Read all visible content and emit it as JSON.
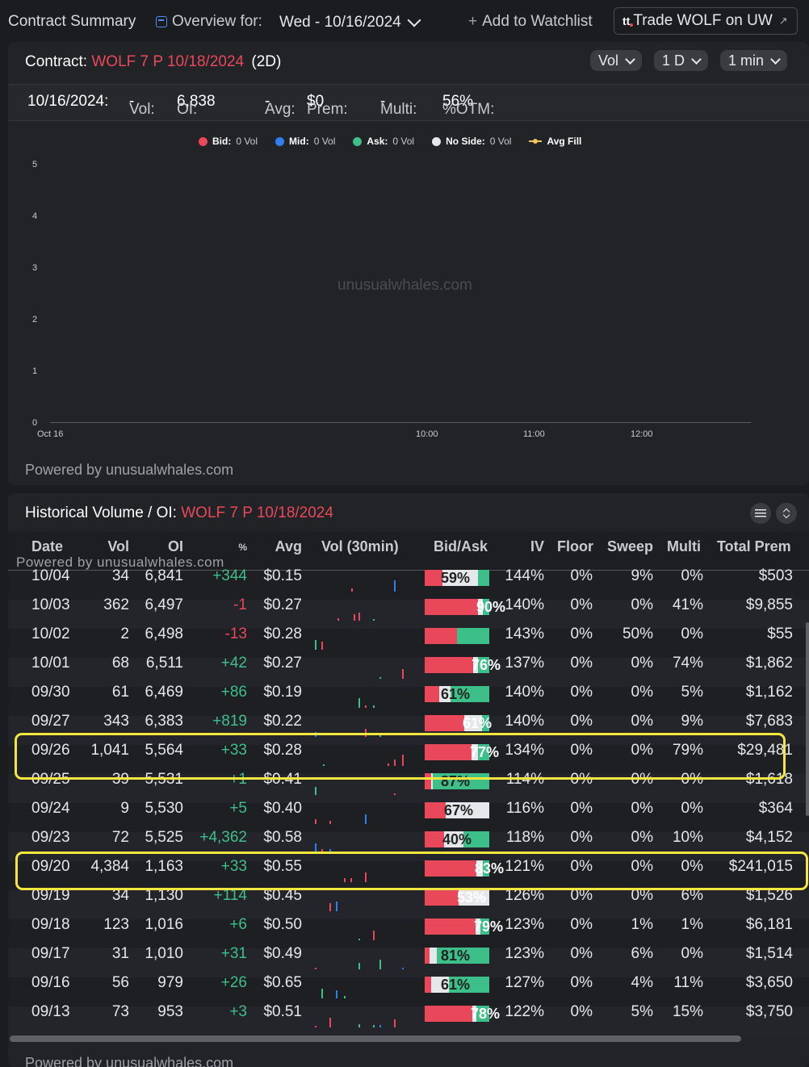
{
  "topbar": {
    "title": "Contract Summary",
    "overview_label": "Overview for:",
    "date_value": "Wed - 10/16/2024",
    "watchlist": "Add to Watchlist",
    "trade_logo": "tt",
    "trade_label": "Trade WOLF on UW",
    "trade_ext": "↗"
  },
  "contract": {
    "label": "Contract:",
    "symbol": "WOLF 7 P 10/18/2024",
    "dte": "(2D)",
    "pills": [
      "Vol",
      "1 D",
      "1 min"
    ]
  },
  "stats": {
    "date": "10/16/2024:",
    "vol_label": "Vol:",
    "vol": "-",
    "oi_label": "OI:",
    "oi": "6,838",
    "avg_label": "Avg:",
    "avg": "-",
    "prem_label": "Prem:",
    "prem": "$0",
    "multi_label": "Multi:",
    "multi": "-",
    "otm_label": "%OTM:",
    "otm": "56%"
  },
  "chart_data": {
    "type": "bar",
    "title": "",
    "legend": [
      {
        "name": "Bid:",
        "value": "0 Vol",
        "color": "#e8485a"
      },
      {
        "name": "Mid:",
        "value": "0 Vol",
        "color": "#2f7ff0"
      },
      {
        "name": "Ask:",
        "value": "0 Vol",
        "color": "#3dbf8a"
      },
      {
        "name": "No Side:",
        "value": "0 Vol",
        "color": "#e6e7ea"
      },
      {
        "name": "Avg Fill",
        "value": "",
        "color": "#f3c65a"
      }
    ],
    "y_ticks": [
      "5",
      "4",
      "3",
      "2",
      "1",
      "0"
    ],
    "x_ticks": [
      "Oct 16",
      "10:00",
      "11:00",
      "12:00"
    ],
    "ylim": [
      0,
      5
    ],
    "series": [],
    "watermark": "unusualwhales.com"
  },
  "chart_footer": "Powered by unusualwhales.com",
  "history": {
    "label": "Historical Volume / OI:",
    "symbol": "WOLF 7 P 10/18/2024",
    "overlay_text": "Powered by unusualwhales.com",
    "columns": [
      "Date",
      "Vol",
      "OI",
      "%",
      "Avg",
      "Vol (30min)",
      "Bid/Ask",
      "IV",
      "Floor",
      "Sweep",
      "Multi",
      "Total Prem"
    ],
    "rows": [
      {
        "date": "10/04",
        "vol": "34",
        "oi": "6,841",
        "chg": "+344",
        "avg": "$0.15",
        "bid": 0.28,
        "mid": 0.55,
        "pct": "59%",
        "iv": "144%",
        "floor": "0%",
        "sweep": "9%",
        "multi": "0%",
        "prem": "$503"
      },
      {
        "date": "10/03",
        "vol": "362",
        "oi": "6,497",
        "chg": "-1",
        "avg": "$0.27",
        "bid": 0.82,
        "mid": 0.07,
        "pct": "90%",
        "iv": "140%",
        "floor": "0%",
        "sweep": "0%",
        "multi": "41%",
        "prem": "$9,855"
      },
      {
        "date": "10/02",
        "vol": "2",
        "oi": "6,498",
        "chg": "-13",
        "avg": "$0.28",
        "bid": 0.5,
        "mid": 0,
        "pct": "",
        "iv": "143%",
        "floor": "0%",
        "sweep": "50%",
        "multi": "0%",
        "prem": "$55"
      },
      {
        "date": "10/01",
        "vol": "68",
        "oi": "6,511",
        "chg": "+42",
        "avg": "$0.27",
        "bid": 0.75,
        "mid": 0.08,
        "pct": "76%",
        "iv": "137%",
        "floor": "0%",
        "sweep": "0%",
        "multi": "74%",
        "prem": "$1,862"
      },
      {
        "date": "09/30",
        "vol": "61",
        "oi": "6,469",
        "chg": "+86",
        "avg": "$0.19",
        "bid": 0.22,
        "mid": 0.17,
        "pct": "61%",
        "iv": "140%",
        "floor": "0%",
        "sweep": "0%",
        "multi": "5%",
        "prem": "$1,162"
      },
      {
        "date": "09/27",
        "vol": "343",
        "oi": "6,383",
        "chg": "+819",
        "avg": "$0.22",
        "bid": 0.61,
        "mid": 0.27,
        "pct": "61%",
        "iv": "140%",
        "floor": "0%",
        "sweep": "0%",
        "multi": "9%",
        "prem": "$7,683"
      },
      {
        "date": "09/26",
        "vol": "1,041",
        "oi": "5,564",
        "chg": "+33",
        "avg": "$0.28",
        "bid": 0.72,
        "mid": 0.1,
        "pct": "77%",
        "iv": "134%",
        "floor": "0%",
        "sweep": "0%",
        "multi": "79%",
        "prem": "$29,481"
      },
      {
        "date": "09/25",
        "vol": "39",
        "oi": "5,531",
        "chg": "+1",
        "avg": "$0.41",
        "bid": 0.1,
        "mid": 0.03,
        "pct": "87%",
        "iv": "114%",
        "floor": "0%",
        "sweep": "0%",
        "multi": "0%",
        "prem": "$1,618"
      },
      {
        "date": "09/24",
        "vol": "9",
        "oi": "5,530",
        "chg": "+5",
        "avg": "$0.40",
        "bid": 0.33,
        "mid": 0.67,
        "pct": "67%",
        "iv": "116%",
        "floor": "0%",
        "sweep": "0%",
        "multi": "0%",
        "prem": "$364"
      },
      {
        "date": "09/23",
        "vol": "72",
        "oi": "5,525",
        "chg": "+4,362",
        "avg": "$0.58",
        "bid": 0.3,
        "mid": 0.3,
        "pct": "40%",
        "iv": "118%",
        "floor": "0%",
        "sweep": "0%",
        "multi": "10%",
        "prem": "$4,152"
      },
      {
        "date": "09/20",
        "vol": "4,384",
        "oi": "1,163",
        "chg": "+33",
        "avg": "$0.55",
        "bid": 0.8,
        "mid": 0.1,
        "pct": "83%",
        "iv": "121%",
        "floor": "0%",
        "sweep": "0%",
        "multi": "0%",
        "prem": "$241,015"
      },
      {
        "date": "09/19",
        "vol": "34",
        "oi": "1,130",
        "chg": "+114",
        "avg": "$0.45",
        "bid": 0.53,
        "mid": 0.47,
        "pct": "53%",
        "iv": "126%",
        "floor": "0%",
        "sweep": "0%",
        "multi": "6%",
        "prem": "$1,526"
      },
      {
        "date": "09/18",
        "vol": "123",
        "oi": "1,016",
        "chg": "+6",
        "avg": "$0.50",
        "bid": 0.79,
        "mid": 0.07,
        "pct": "79%",
        "iv": "123%",
        "floor": "0%",
        "sweep": "1%",
        "multi": "1%",
        "prem": "$6,181"
      },
      {
        "date": "09/17",
        "vol": "31",
        "oi": "1,010",
        "chg": "+31",
        "avg": "$0.49",
        "bid": 0.08,
        "mid": 0.11,
        "pct": "81%",
        "iv": "123%",
        "floor": "0%",
        "sweep": "6%",
        "multi": "0%",
        "prem": "$1,514"
      },
      {
        "date": "09/16",
        "vol": "56",
        "oi": "979",
        "chg": "+26",
        "avg": "$0.65",
        "bid": 0.1,
        "mid": 0.28,
        "pct": "61%",
        "iv": "127%",
        "floor": "0%",
        "sweep": "4%",
        "multi": "11%",
        "prem": "$3,650"
      },
      {
        "date": "09/13",
        "vol": "73",
        "oi": "953",
        "chg": "+3",
        "avg": "$0.51",
        "bid": 0.74,
        "mid": 0.06,
        "pct": "78%",
        "iv": "122%",
        "floor": "0%",
        "sweep": "5%",
        "multi": "15%",
        "prem": "$3,750"
      }
    ],
    "footer": "Powered by unusualwhales.com"
  },
  "colors": {
    "bid": "#e8485a",
    "mid": "#e6e7ea",
    "ask": "#3dbf8a",
    "highlight": "#f2e63f"
  }
}
